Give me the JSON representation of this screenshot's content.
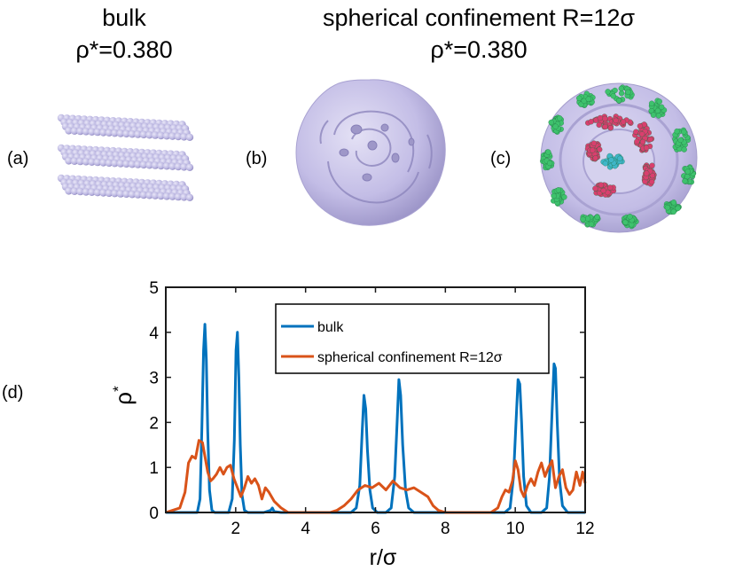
{
  "titles": {
    "bulk": {
      "line1": "bulk",
      "line2": "ρ*=0.380"
    },
    "confined": {
      "line1": "spherical confinement R=12σ",
      "line2": "ρ*=0.380"
    }
  },
  "panels": {
    "a": "(a)",
    "b": "(b)",
    "c": "(c)",
    "d": "(d)"
  },
  "colors": {
    "bulk_particle": "#b9b4e0",
    "isosurface": "#c3bde6",
    "shell_outer": "#3ec26d",
    "shell_middle": "#d93f6e",
    "core": "#3fb6c8",
    "series_bulk": "#0072bd",
    "series_confined": "#d95319"
  },
  "chart_data": {
    "type": "line",
    "title": "",
    "xlabel": "r/σ",
    "ylabel": "ρ*",
    "ylabel_main": "ρ",
    "ylabel_sup": "*",
    "xlim": [
      0,
      12
    ],
    "ylim": [
      0,
      5
    ],
    "xticks": [
      2,
      4,
      6,
      8,
      10,
      12
    ],
    "yticks": [
      0,
      1,
      2,
      3,
      4,
      5
    ],
    "legend_position": "top-center",
    "series": [
      {
        "name": "bulk",
        "color": "#0072bd",
        "x": [
          0,
          0.9,
          0.98,
          1.03,
          1.08,
          1.12,
          1.16,
          1.2,
          1.25,
          1.32,
          1.4,
          1.8,
          1.9,
          1.96,
          2.01,
          2.05,
          2.09,
          2.13,
          2.18,
          2.25,
          2.35,
          2.8,
          3.0,
          3.05,
          3.1,
          3.3,
          5.3,
          5.45,
          5.55,
          5.62,
          5.67,
          5.72,
          5.77,
          5.84,
          5.92,
          6.05,
          6.3,
          6.45,
          6.55,
          6.62,
          6.67,
          6.72,
          6.78,
          6.86,
          6.95,
          7.1,
          9.7,
          9.85,
          9.95,
          10.02,
          10.08,
          10.13,
          10.18,
          10.24,
          10.32,
          10.45,
          10.75,
          10.9,
          10.98,
          11.05,
          11.11,
          11.15,
          11.2,
          11.27,
          11.35,
          11.5,
          12
        ],
        "y": [
          0,
          0,
          0.3,
          1.8,
          3.6,
          4.18,
          3.4,
          1.8,
          0.5,
          0.05,
          0,
          0,
          0.3,
          1.6,
          3.6,
          4.0,
          3.0,
          1.5,
          0.4,
          0.05,
          0,
          0,
          0.05,
          0.1,
          0.02,
          0,
          0,
          0.1,
          0.6,
          1.8,
          2.6,
          2.3,
          1.4,
          0.5,
          0.1,
          0,
          0,
          0.1,
          0.8,
          2.0,
          2.95,
          2.6,
          1.5,
          0.5,
          0.1,
          0,
          0,
          0.1,
          0.8,
          2.0,
          2.95,
          2.85,
          2.0,
          0.8,
          0.15,
          0,
          0,
          0.1,
          0.8,
          2.2,
          3.3,
          3.2,
          2.0,
          0.7,
          0.15,
          0,
          0
        ]
      },
      {
        "name": "spherical confinement R=12σ",
        "color": "#d95319",
        "x": [
          0,
          0.4,
          0.55,
          0.65,
          0.75,
          0.85,
          0.95,
          1.05,
          1.12,
          1.2,
          1.28,
          1.35,
          1.45,
          1.55,
          1.65,
          1.75,
          1.85,
          1.95,
          2.05,
          2.15,
          2.25,
          2.35,
          2.45,
          2.55,
          2.65,
          2.75,
          2.85,
          2.95,
          3.1,
          3.3,
          3.5,
          4.7,
          4.9,
          5.1,
          5.3,
          5.5,
          5.7,
          5.9,
          6.1,
          6.3,
          6.5,
          6.7,
          6.9,
          7.1,
          7.3,
          7.5,
          7.65,
          7.8,
          8.0,
          9.3,
          9.5,
          9.62,
          9.72,
          9.82,
          9.92,
          10.0,
          10.08,
          10.16,
          10.25,
          10.35,
          10.45,
          10.55,
          10.65,
          10.75,
          10.85,
          10.95,
          11.05,
          11.15,
          11.25,
          11.35,
          11.45,
          11.55,
          11.65,
          11.75,
          11.85,
          11.93,
          12.0
        ],
        "y": [
          0,
          0.1,
          0.45,
          1.1,
          1.25,
          1.2,
          1.6,
          1.55,
          1.25,
          0.9,
          0.7,
          0.75,
          0.85,
          1.0,
          0.85,
          1.0,
          1.05,
          0.75,
          0.55,
          0.35,
          0.55,
          0.8,
          0.65,
          0.75,
          0.6,
          0.3,
          0.55,
          0.45,
          0.25,
          0.1,
          0,
          0,
          0.05,
          0.15,
          0.3,
          0.5,
          0.6,
          0.55,
          0.65,
          0.5,
          0.7,
          0.55,
          0.5,
          0.55,
          0.45,
          0.35,
          0.15,
          0.05,
          0,
          0,
          0.1,
          0.35,
          0.5,
          0.45,
          0.7,
          1.15,
          0.95,
          0.5,
          0.35,
          0.6,
          0.75,
          0.6,
          0.9,
          1.1,
          0.8,
          1.0,
          1.15,
          0.55,
          0.8,
          0.95,
          0.55,
          0.4,
          0.5,
          0.9,
          0.6,
          0.9,
          0.65
        ]
      }
    ]
  }
}
